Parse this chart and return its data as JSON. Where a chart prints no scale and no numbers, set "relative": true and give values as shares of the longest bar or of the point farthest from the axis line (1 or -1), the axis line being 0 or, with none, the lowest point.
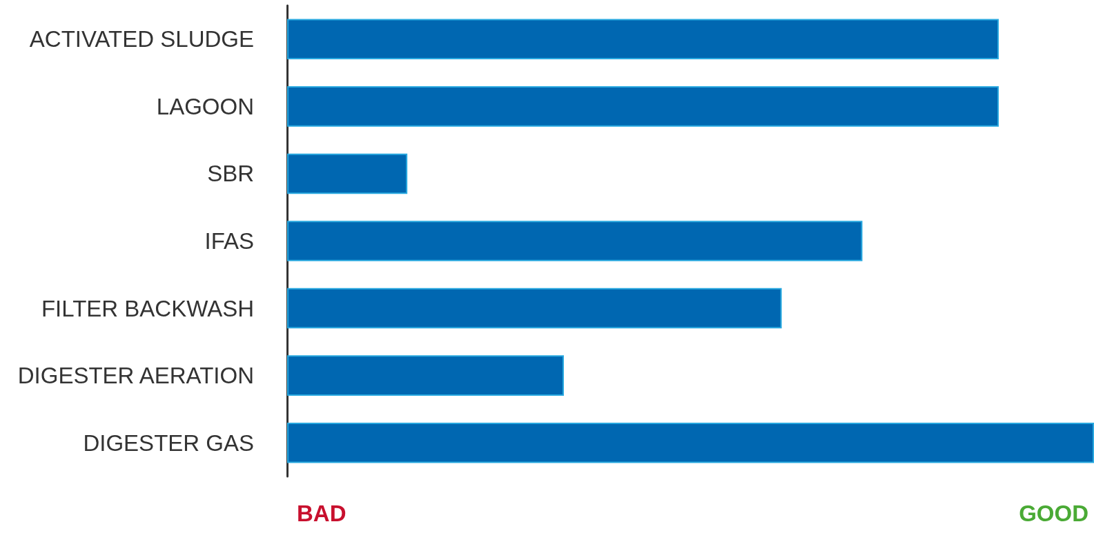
{
  "chart_data": {
    "type": "bar",
    "orientation": "horizontal",
    "relative": true,
    "categories": [
      "ACTIVATED SLUDGE",
      "LAGOON",
      "SBR",
      "IFAS",
      "FILTER BACKWASH",
      "DIGESTER AERATION",
      "DIGESTER GAS"
    ],
    "values": [
      0.882,
      0.882,
      0.149,
      0.713,
      0.613,
      0.343,
      1
    ],
    "color": "#0067b1",
    "annotations": [
      "BAD",
      "GOOD"
    ]
  }
}
